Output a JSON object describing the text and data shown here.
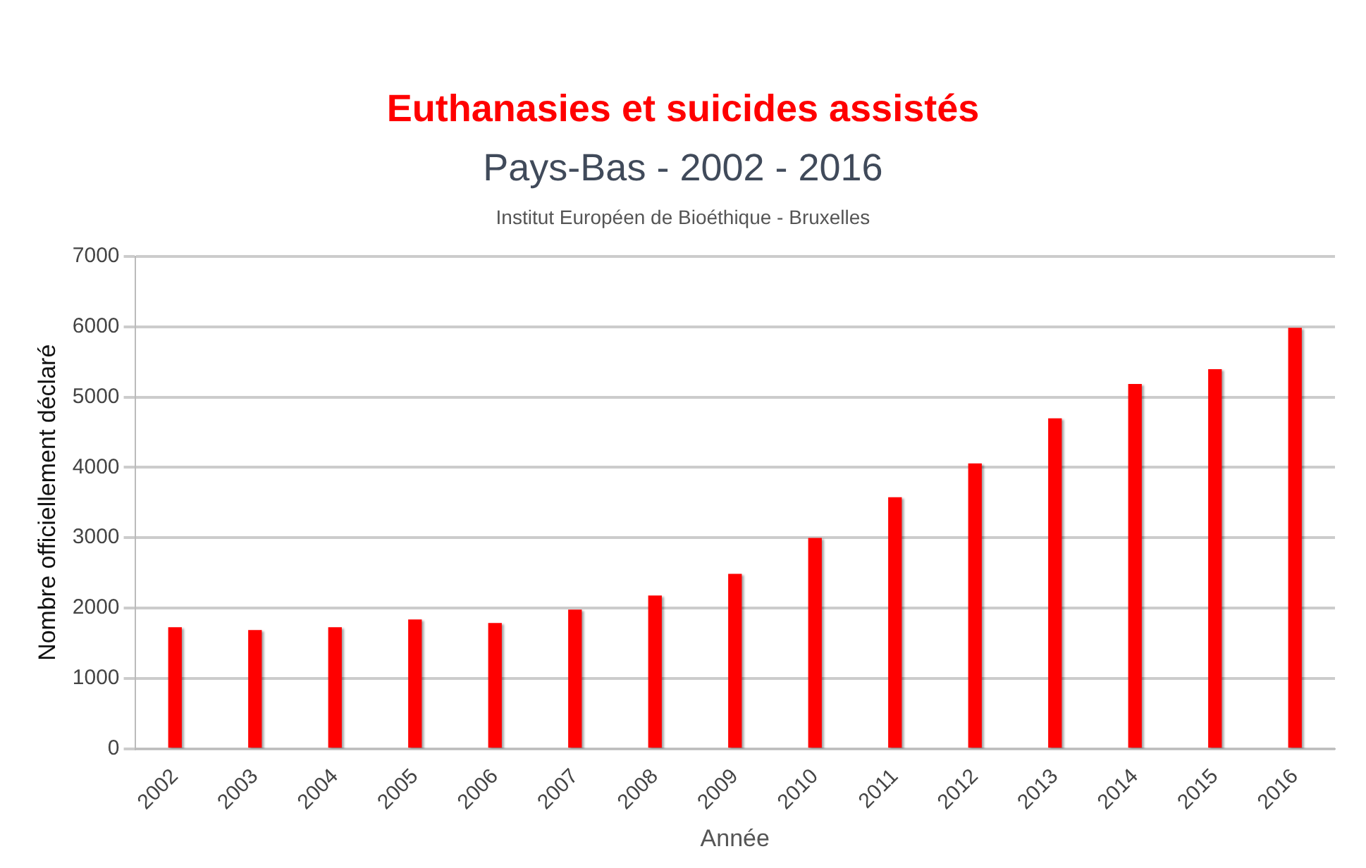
{
  "chart_data": {
    "type": "bar",
    "title": "Euthanasies et suicides assistés",
    "subtitle": "Pays-Bas - 2002 - 2016",
    "annotations": [
      "Institut Européen de Bioéthique - Bruxelles"
    ],
    "xlabel": "Année",
    "ylabel": "Nombre officiellement déclaré",
    "categories": [
      "2002",
      "2003",
      "2004",
      "2005",
      "2006",
      "2007",
      "2008",
      "2009",
      "2010",
      "2011",
      "2012",
      "2013",
      "2014",
      "2015",
      "2016"
    ],
    "values": [
      1720,
      1680,
      1720,
      1830,
      1780,
      1970,
      2170,
      2480,
      2990,
      3570,
      4050,
      4690,
      5180,
      5390,
      5980
    ],
    "color": "#ff0000",
    "ylim": [
      0,
      7000
    ],
    "yticks": [
      0,
      1000,
      2000,
      3000,
      4000,
      5000,
      6000,
      7000
    ],
    "grid": "y",
    "legend": false
  }
}
